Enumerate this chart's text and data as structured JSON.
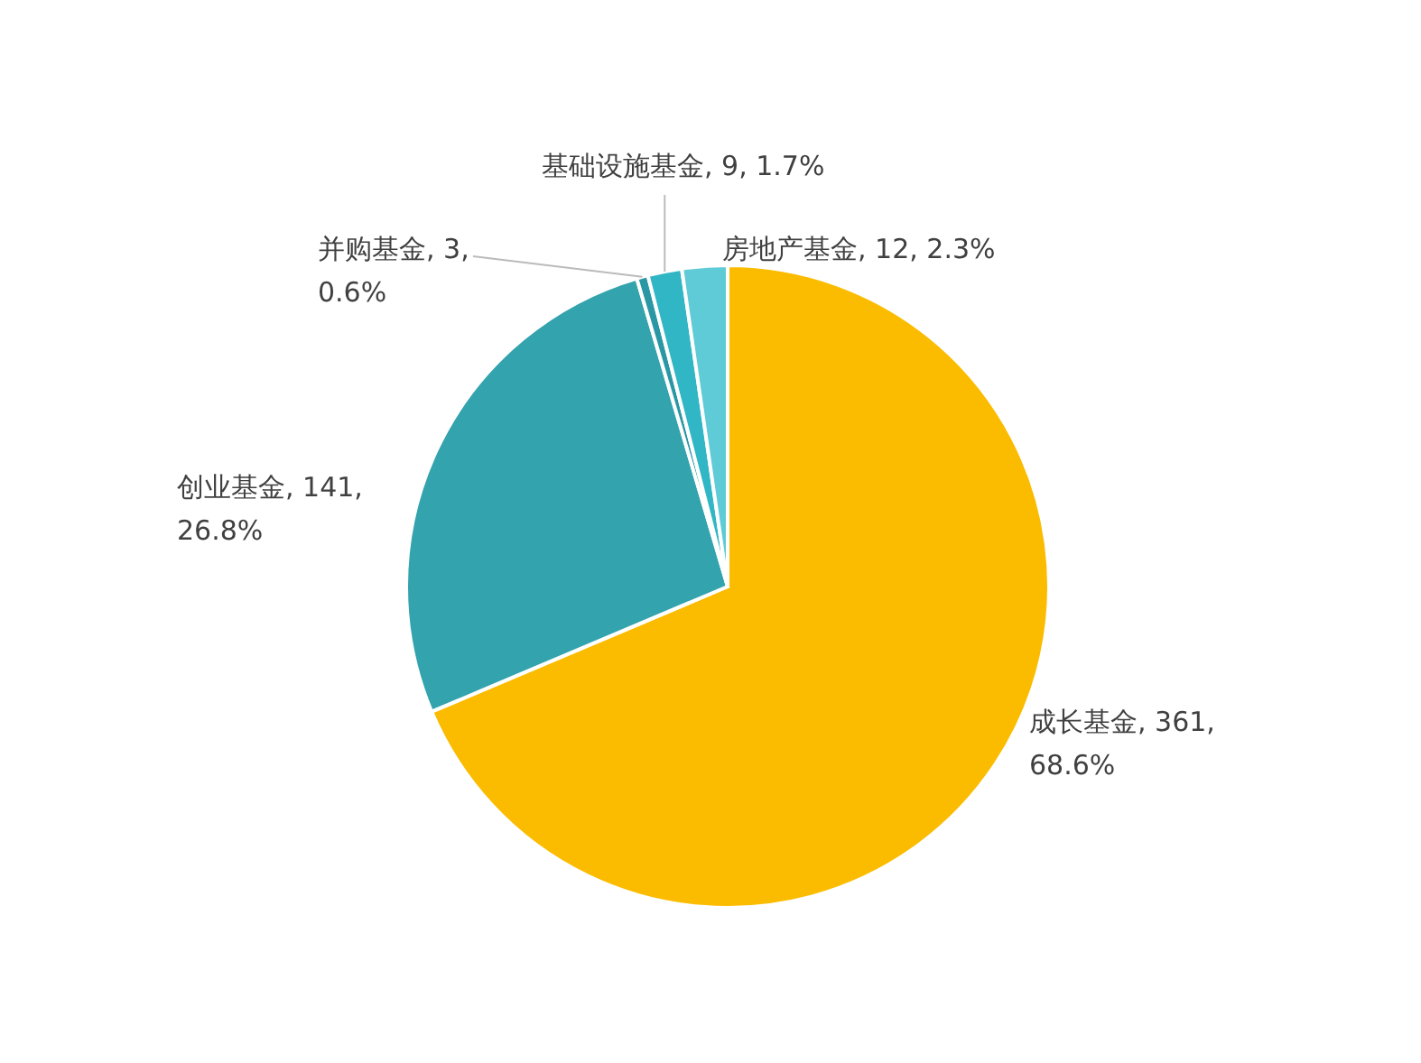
{
  "chart_data": {
    "type": "pie",
    "categories": [
      "成长基金",
      "创业基金",
      "并购基金",
      "基础设施基金",
      "房地产基金"
    ],
    "values": [
      361,
      141,
      3,
      9,
      12
    ],
    "value_labels": [
      "361, 68.6%",
      "141, 26.8%",
      "3, 0.6%",
      "9, 1.7%",
      "12, 2.3%"
    ],
    "colors": [
      "#fbbc00",
      "#33a3ae",
      "#2a97a4",
      "#30b6c4",
      "#5fcbd6"
    ],
    "legend": false
  }
}
